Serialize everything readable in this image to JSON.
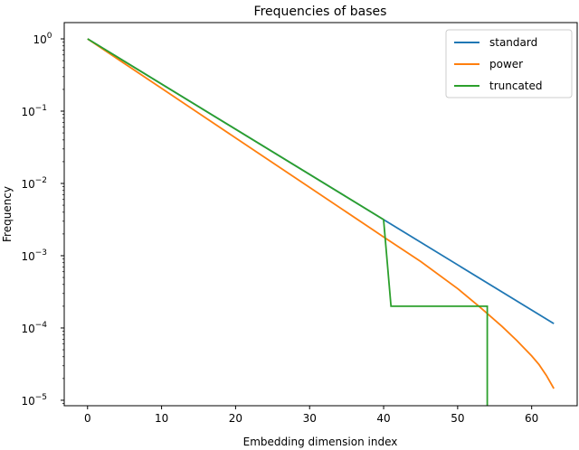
{
  "chart_data": {
    "type": "line",
    "title": "Frequencies of bases",
    "xlabel": "Embedding dimension index",
    "ylabel": "Frequency",
    "xlim": [
      -3.15,
      66.15
    ],
    "ylim": [
      8.4e-06,
      1.68
    ],
    "yscale": "log",
    "grid": false,
    "legend": "top-right",
    "xticks": [
      0,
      10,
      20,
      30,
      40,
      50,
      60
    ],
    "yticks": [
      {
        "value": 1,
        "label": "10",
        "exp": "0"
      },
      {
        "value": 0.1,
        "label": "10",
        "exp": "−1"
      },
      {
        "value": 0.01,
        "label": "10",
        "exp": "−2"
      },
      {
        "value": 0.001,
        "label": "10",
        "exp": "−3"
      },
      {
        "value": 0.0001,
        "label": "10",
        "exp": "−4"
      },
      {
        "value": 1e-05,
        "label": "10",
        "exp": "−5"
      }
    ],
    "series": [
      {
        "name": "standard",
        "color": "#1f77b4",
        "x": [
          0,
          63
        ],
        "y": [
          1,
          0.000115
        ]
      },
      {
        "name": "power",
        "color": "#ff7f0e",
        "x": [
          0,
          10,
          20,
          30,
          40,
          45,
          50,
          53,
          56,
          58,
          60,
          61,
          62,
          63
        ],
        "y": [
          1,
          0.2065,
          0.0427,
          0.00881,
          0.00182,
          0.00083,
          0.00035,
          0.000195,
          0.000105,
          6.7e-05,
          4.1e-05,
          3.1e-05,
          2.2e-05,
          1.45e-05
        ]
      },
      {
        "name": "truncated",
        "color": "#2ca02c",
        "x": [
          0,
          40,
          41,
          54,
          54
        ],
        "y": [
          1,
          0.00316,
          0.0002,
          0.0002,
          0
        ]
      }
    ]
  }
}
